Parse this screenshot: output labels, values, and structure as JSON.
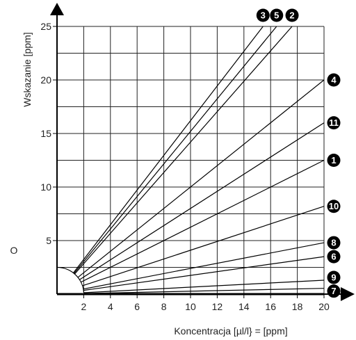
{
  "chart_data": {
    "type": "line",
    "xlabel": "Koncentracja [µl/l} = [ppm]",
    "ylabel": "Wskazanie [ppm]",
    "xlim": [
      0,
      20
    ],
    "ylim": [
      0,
      25
    ],
    "x_ticks": [
      "2",
      "4",
      "6",
      "8",
      "10",
      "12",
      "14",
      "16",
      "18",
      "20"
    ],
    "y_ticks": [
      "5",
      "10",
      "15",
      "20",
      "25"
    ],
    "grid": true,
    "origin_label": "O",
    "series": [
      {
        "name": "3",
        "slope": 1.62
      },
      {
        "name": "5",
        "slope": 1.52
      },
      {
        "name": "2",
        "slope": 1.42
      },
      {
        "name": "4",
        "slope": 1.0
      },
      {
        "name": "11",
        "slope": 0.8
      },
      {
        "name": "1",
        "slope": 0.625
      },
      {
        "name": "10",
        "slope": 0.41
      },
      {
        "name": "8",
        "slope": 0.24
      },
      {
        "name": "6",
        "slope": 0.175
      },
      {
        "name": "9",
        "slope": 0.065
      },
      {
        "name": "7",
        "slope": 0.027
      }
    ]
  }
}
